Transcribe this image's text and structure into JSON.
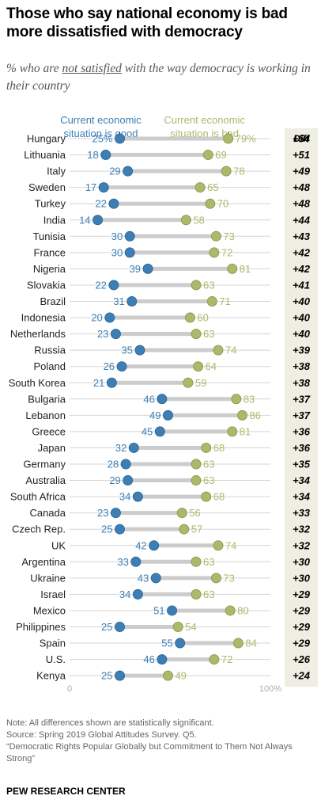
{
  "title": "Those who say national economy is bad more dissatisfied with democracy",
  "subtitle": {
    "pre": "% who are ",
    "underlined": "not satisfied",
    "post": " with the way democracy is working in their country"
  },
  "chart_data": {
    "type": "dot-plot",
    "legend": {
      "good": "Current economic situation is good",
      "bad": "Current economic situation is bad"
    },
    "diff_header": "Diff",
    "axis": {
      "min_label": "0",
      "max_label": "100%",
      "range": [
        0,
        100
      ]
    },
    "colors": {
      "good": "#3d7fb5",
      "bad": "#aab96a",
      "diff_bg": "#efeee2",
      "bar": "#cccccc"
    },
    "series": [
      {
        "name": "Current economic situation is good",
        "key": "good"
      },
      {
        "name": "Current economic situation is bad",
        "key": "bad"
      }
    ],
    "rows": [
      {
        "country": "Hungary",
        "good": 25,
        "bad": 79,
        "good_label": "25%",
        "bad_label": "79%",
        "diff": "+54"
      },
      {
        "country": "Lithuania",
        "good": 18,
        "bad": 69,
        "good_label": "18",
        "bad_label": "69",
        "diff": "+51"
      },
      {
        "country": "Italy",
        "good": 29,
        "bad": 78,
        "good_label": "29",
        "bad_label": "78",
        "diff": "+49"
      },
      {
        "country": "Sweden",
        "good": 17,
        "bad": 65,
        "good_label": "17",
        "bad_label": "65",
        "diff": "+48"
      },
      {
        "country": "Turkey",
        "good": 22,
        "bad": 70,
        "good_label": "22",
        "bad_label": "70",
        "diff": "+48"
      },
      {
        "country": "India",
        "good": 14,
        "bad": 58,
        "good_label": "14",
        "bad_label": "58",
        "diff": "+44"
      },
      {
        "country": "Tunisia",
        "good": 30,
        "bad": 73,
        "good_label": "30",
        "bad_label": "73",
        "diff": "+43"
      },
      {
        "country": "France",
        "good": 30,
        "bad": 72,
        "good_label": "30",
        "bad_label": "72",
        "diff": "+42"
      },
      {
        "country": "Nigeria",
        "good": 39,
        "bad": 81,
        "good_label": "39",
        "bad_label": "81",
        "diff": "+42"
      },
      {
        "country": "Slovakia",
        "good": 22,
        "bad": 63,
        "good_label": "22",
        "bad_label": "63",
        "diff": "+41"
      },
      {
        "country": "Brazil",
        "good": 31,
        "bad": 71,
        "good_label": "31",
        "bad_label": "71",
        "diff": "+40"
      },
      {
        "country": "Indonesia",
        "good": 20,
        "bad": 60,
        "good_label": "20",
        "bad_label": "60",
        "diff": "+40"
      },
      {
        "country": "Netherlands",
        "good": 23,
        "bad": 63,
        "good_label": "23",
        "bad_label": "63",
        "diff": "+40"
      },
      {
        "country": "Russia",
        "good": 35,
        "bad": 74,
        "good_label": "35",
        "bad_label": "74",
        "diff": "+39"
      },
      {
        "country": "Poland",
        "good": 26,
        "bad": 64,
        "good_label": "26",
        "bad_label": "64",
        "diff": "+38"
      },
      {
        "country": "South Korea",
        "good": 21,
        "bad": 59,
        "good_label": "21",
        "bad_label": "59",
        "diff": "+38"
      },
      {
        "country": "Bulgaria",
        "good": 46,
        "bad": 83,
        "good_label": "46",
        "bad_label": "83",
        "diff": "+37"
      },
      {
        "country": "Lebanon",
        "good": 49,
        "bad": 86,
        "good_label": "49",
        "bad_label": "86",
        "diff": "+37"
      },
      {
        "country": "Greece",
        "good": 45,
        "bad": 81,
        "good_label": "45",
        "bad_label": "81",
        "diff": "+36"
      },
      {
        "country": "Japan",
        "good": 32,
        "bad": 68,
        "good_label": "32",
        "bad_label": "68",
        "diff": "+36"
      },
      {
        "country": "Germany",
        "good": 28,
        "bad": 63,
        "good_label": "28",
        "bad_label": "63",
        "diff": "+35"
      },
      {
        "country": "Australia",
        "good": 29,
        "bad": 63,
        "good_label": "29",
        "bad_label": "63",
        "diff": "+34"
      },
      {
        "country": "South Africa",
        "good": 34,
        "bad": 68,
        "good_label": "34",
        "bad_label": "68",
        "diff": "+34"
      },
      {
        "country": "Canada",
        "good": 23,
        "bad": 56,
        "good_label": "23",
        "bad_label": "56",
        "diff": "+33"
      },
      {
        "country": "Czech Rep.",
        "good": 25,
        "bad": 57,
        "good_label": "25",
        "bad_label": "57",
        "diff": "+32"
      },
      {
        "country": "UK",
        "good": 42,
        "bad": 74,
        "good_label": "42",
        "bad_label": "74",
        "diff": "+32"
      },
      {
        "country": "Argentina",
        "good": 33,
        "bad": 63,
        "good_label": "33",
        "bad_label": "63",
        "diff": "+30"
      },
      {
        "country": "Ukraine",
        "good": 43,
        "bad": 73,
        "good_label": "43",
        "bad_label": "73",
        "diff": "+30"
      },
      {
        "country": "Israel",
        "good": 34,
        "bad": 63,
        "good_label": "34",
        "bad_label": "63",
        "diff": "+29"
      },
      {
        "country": "Mexico",
        "good": 51,
        "bad": 80,
        "good_label": "51",
        "bad_label": "80",
        "diff": "+29"
      },
      {
        "country": "Philippines",
        "good": 25,
        "bad": 54,
        "good_label": "25",
        "bad_label": "54",
        "diff": "+29"
      },
      {
        "country": "Spain",
        "good": 55,
        "bad": 84,
        "good_label": "55",
        "bad_label": "84",
        "diff": "+29"
      },
      {
        "country": "U.S.",
        "good": 46,
        "bad": 72,
        "good_label": "46",
        "bad_label": "72",
        "diff": "+26"
      },
      {
        "country": "Kenya",
        "good": 25,
        "bad": 49,
        "good_label": "25",
        "bad_label": "49",
        "diff": "+24"
      }
    ]
  },
  "notes": {
    "note": "Note: All differences shown are statistically significant.",
    "source": "Source: Spring 2019 Global Attitudes Survey. Q5.",
    "report": "“Democratic Rights Popular Globally but Commitment to Them Not Always Strong”"
  },
  "footer": "PEW RESEARCH CENTER"
}
